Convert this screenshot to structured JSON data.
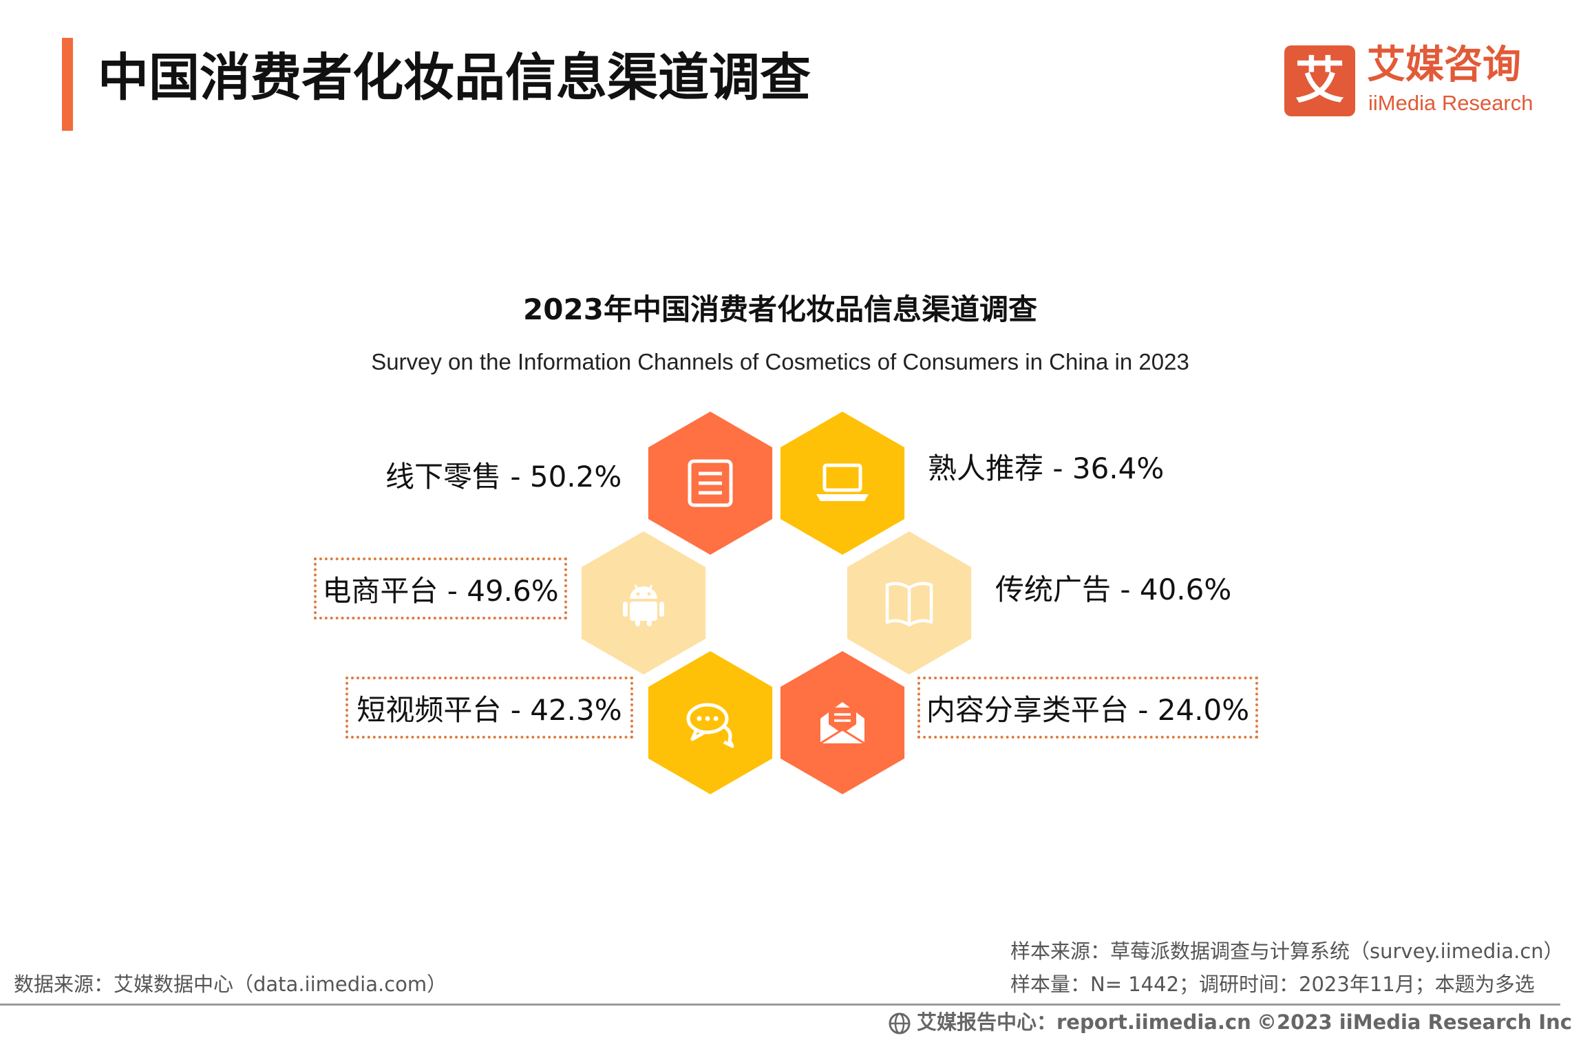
{
  "header": {
    "title": "中国消费者化妆品信息渠道调查"
  },
  "brand": {
    "logo_glyph": "艾",
    "name_cn": "艾媒咨询",
    "name_en": "iiMedia Research",
    "accent_color": "#f26b3a"
  },
  "chart_data": {
    "type": "hexagon-infographic",
    "title": "2023年中国消费者化妆品信息渠道调查",
    "subtitle": "Survey on the Information Channels of Cosmetics of Consumers in China in 2023",
    "unit": "%",
    "items": [
      {
        "label": "线下零售 - 50.2%",
        "channel": "线下零售",
        "value": 50.2,
        "icon": "document-icon",
        "color": "#ff7043"
      },
      {
        "label": "熟人推荐 - 36.4%",
        "channel": "熟人推荐",
        "value": 36.4,
        "icon": "laptop-icon",
        "color": "#ffc107"
      },
      {
        "label": "电商平台 - 49.6%",
        "channel": "电商平台",
        "value": 49.6,
        "icon": "android-icon",
        "color": "#fde0a4"
      },
      {
        "label": "传统广告 - 40.6%",
        "channel": "传统广告",
        "value": 40.6,
        "icon": "book-icon",
        "color": "#fde0a4"
      },
      {
        "label": "短视频平台 - 42.3%",
        "channel": "短视频平台",
        "value": 42.3,
        "icon": "chat-icon",
        "color": "#ffc107"
      },
      {
        "label": "内容分享类平台 - 24.0%",
        "channel": "内容分享类平台",
        "value": 24.0,
        "icon": "mail-icon",
        "color": "#ff7043"
      }
    ]
  },
  "footer": {
    "data_source": "数据来源：艾媒数据中心（data.iimedia.com）",
    "sample_source": "样本来源：草莓派数据调查与计算系统（survey.iimedia.cn）",
    "sample_size": "样本量：N= 1442；调研时间：2023年11月；本题为多选",
    "report_center": "艾媒报告中心：report.iimedia.cn",
    "copyright": "©2023  iiMedia Research  Inc"
  }
}
